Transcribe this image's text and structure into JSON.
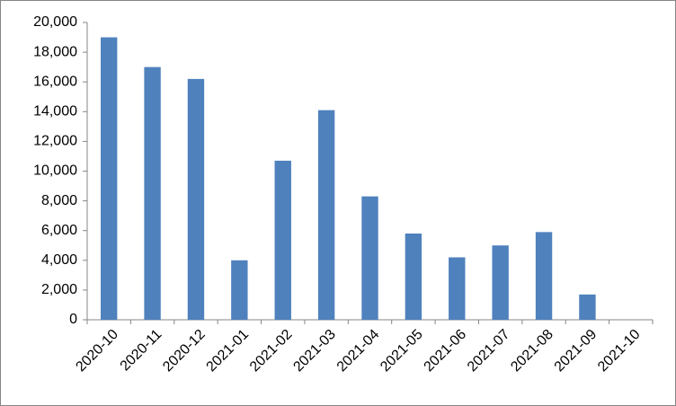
{
  "chart_data": {
    "type": "bar",
    "categories": [
      "2020-10",
      "2020-11",
      "2020-12",
      "2021-01",
      "2021-02",
      "2021-03",
      "2021-04",
      "2021-05",
      "2021-06",
      "2021-07",
      "2021-08",
      "2021-09",
      "2021-10"
    ],
    "values": [
      19000,
      17000,
      16200,
      4000,
      10700,
      14100,
      8300,
      5800,
      4200,
      5000,
      5900,
      1700,
      0
    ],
    "color": "#4f81bd",
    "ylim": [
      0,
      20000
    ],
    "yticks": [
      0,
      {
        "value": 2000,
        "label": "2,000"
      },
      {
        "value": 4000,
        "label": "4,000"
      },
      {
        "value": 6000,
        "label": "6,000"
      },
      {
        "value": 8000,
        "label": "8,000"
      },
      {
        "value": 10000,
        "label": "10,000"
      },
      {
        "value": 12000,
        "label": "12,000"
      },
      {
        "value": 14000,
        "label": "14,000"
      },
      {
        "value": 16000,
        "label": "16,000"
      },
      {
        "value": 18000,
        "label": "18,000"
      },
      {
        "value": 20000,
        "label": "20,000"
      }
    ],
    "grid": false
  }
}
